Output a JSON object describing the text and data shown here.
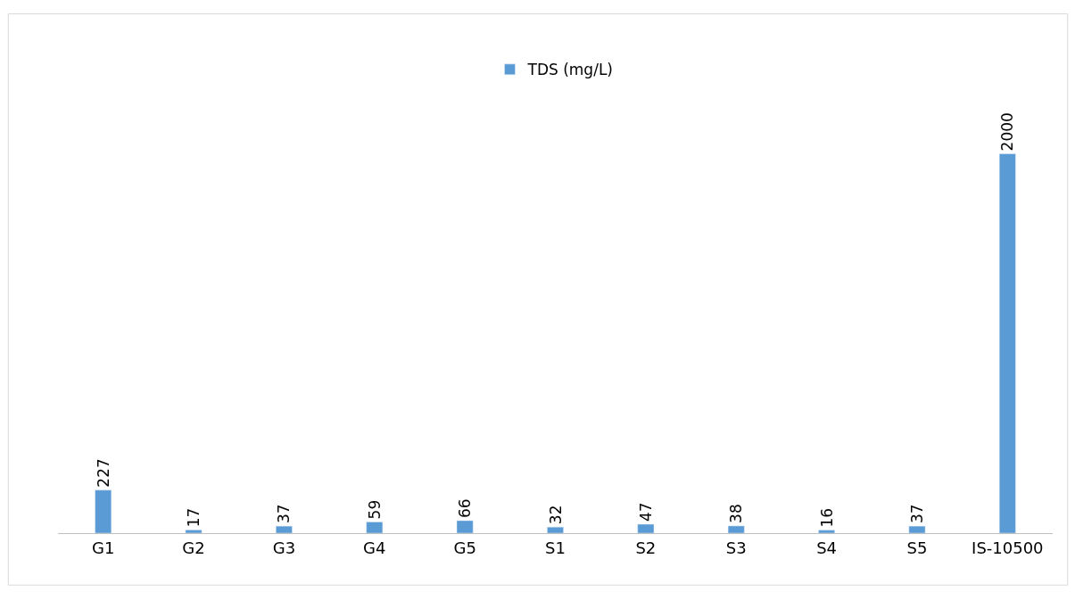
{
  "chart_data": {
    "type": "bar",
    "categories": [
      "G1",
      "G2",
      "G3",
      "G4",
      "G5",
      "S1",
      "S2",
      "S3",
      "S4",
      "S5",
      "IS-10500"
    ],
    "series": [
      {
        "name": "TDS (mg/L)",
        "color": "#5b9bd5",
        "values": [
          227,
          17,
          37,
          59,
          66,
          32,
          47,
          38,
          16,
          37,
          2000
        ]
      }
    ],
    "data_labels": true,
    "legend": "top"
  }
}
